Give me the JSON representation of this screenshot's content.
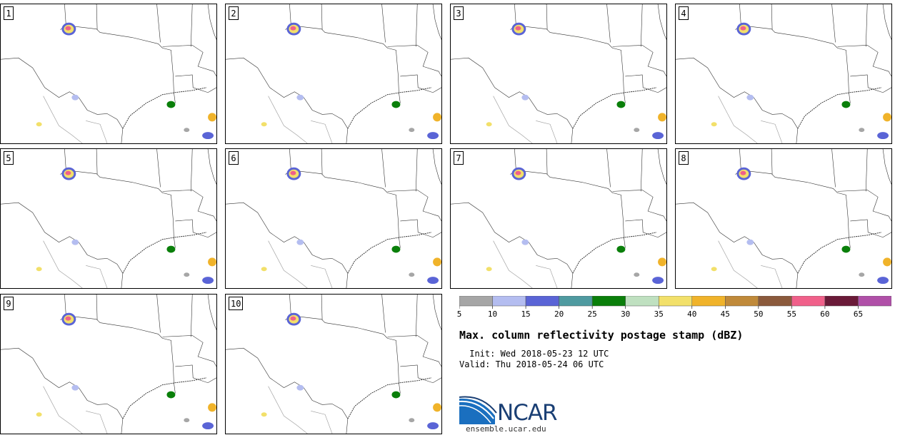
{
  "panels": [
    {
      "label": "1"
    },
    {
      "label": "2"
    },
    {
      "label": "3"
    },
    {
      "label": "4"
    },
    {
      "label": "5"
    },
    {
      "label": "6"
    },
    {
      "label": "7"
    },
    {
      "label": "8"
    },
    {
      "label": "9"
    },
    {
      "label": "10"
    }
  ],
  "colorbar": {
    "unit": "dBZ",
    "ticks": [
      "5",
      "10",
      "15",
      "20",
      "25",
      "30",
      "35",
      "40",
      "45",
      "50",
      "55",
      "60",
      "65"
    ],
    "colors": [
      "#a6a6a6",
      "#b4bdf0",
      "#5a64d6",
      "#4f9aa0",
      "#0a7f0a",
      "#bfe0c0",
      "#f2e06a",
      "#f0b32a",
      "#c08a3a",
      "#8b5a3c",
      "#f0608a",
      "#6a1a38",
      "#b050a8"
    ]
  },
  "title": "Max. column reflectivity postage stamp (dBZ)",
  "init": " Init: Wed 2018-05-23 12 UTC",
  "valid": "Valid: Thu 2018-05-24 06 UTC",
  "logo": {
    "text": "NCAR",
    "url": "ensemble.ucar.edu",
    "color_dark": "#1a3f74",
    "color_light": "#2e7fc4"
  }
}
